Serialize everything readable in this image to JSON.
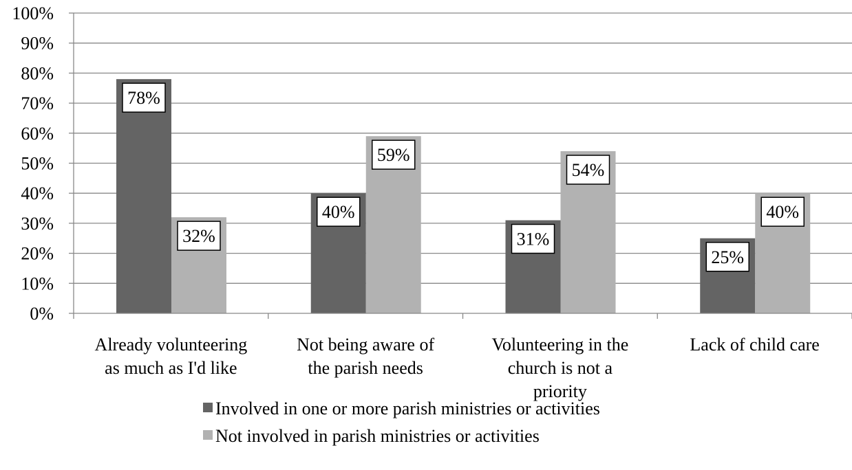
{
  "chart_data": {
    "type": "bar",
    "categories": [
      [
        "Already volunteering",
        "as much as I'd like"
      ],
      [
        "Not being aware of",
        "the parish needs"
      ],
      [
        "Volunteering in the",
        "church is not a",
        "priority"
      ],
      [
        "Lack of child care"
      ]
    ],
    "series": [
      {
        "name": "Involved in one or more parish ministries or activities",
        "values": [
          78,
          40,
          31,
          25
        ],
        "labels": [
          "78%",
          "40%",
          "31%",
          "25%"
        ],
        "color": "#646464"
      },
      {
        "name": "Not involved in parish ministries or activities",
        "values": [
          32,
          59,
          54,
          40
        ],
        "labels": [
          "32%",
          "59%",
          "54%",
          "40%"
        ],
        "color": "#b2b2b2"
      }
    ],
    "ylim": [
      0,
      100
    ],
    "yticks": [
      "0%",
      "10%",
      "20%",
      "30%",
      "40%",
      "50%",
      "60%",
      "70%",
      "80%",
      "90%",
      "100%"
    ],
    "grid": true,
    "legend": "bottom"
  }
}
